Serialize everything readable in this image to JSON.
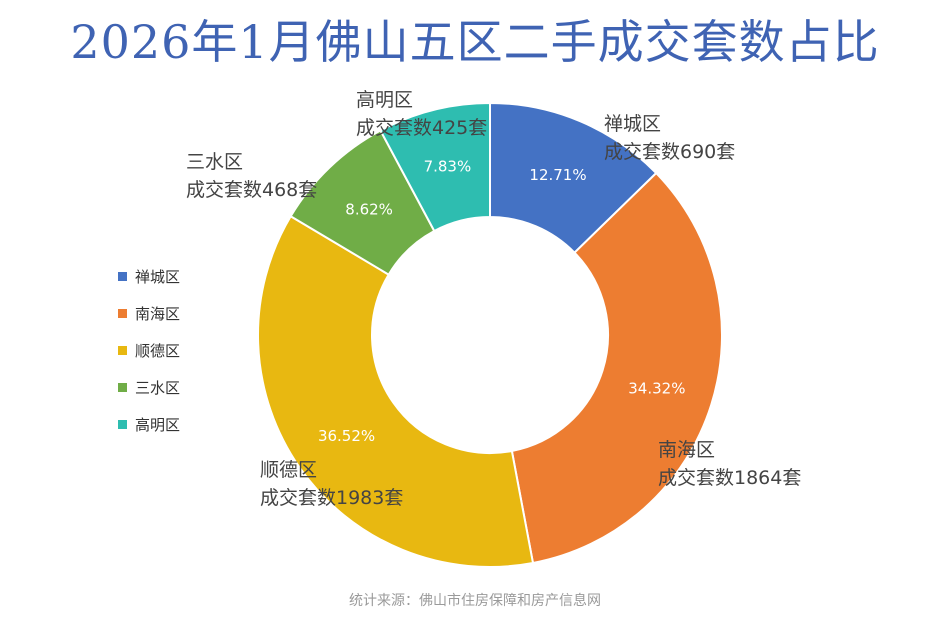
{
  "chart_data": {
    "type": "pie",
    "title": "2026年1月佛山五区二手成交套数占比",
    "series": [
      {
        "name": "",
        "values": [
          690,
          1864,
          1983,
          468,
          425
        ]
      }
    ],
    "categories": [
      "禅城区",
      "南海区",
      "顺德区",
      "三水区",
      "高明区"
    ],
    "percent_labels": [
      "12.71%",
      "34.32%",
      "36.52%",
      "8.62%",
      "7.83%"
    ],
    "callouts": [
      {
        "line1": "禅城区",
        "line2": "成交套数690套"
      },
      {
        "line1": "南海区",
        "line2": "成交套数1864套"
      },
      {
        "line1": "顺德区",
        "line2": "成交套数1983套"
      },
      {
        "line1": "三水区",
        "line2": "成交套数468套"
      },
      {
        "line1": "高明区",
        "line2": "成交套数425套"
      }
    ],
    "colors": [
      "#4472c4",
      "#ed7d31",
      "#e8b811",
      "#70ad47",
      "#2ebdb0"
    ],
    "legend_placement": "left",
    "donut": true,
    "source_note": "统计来源：佛山市住房保障和房产信息网"
  }
}
